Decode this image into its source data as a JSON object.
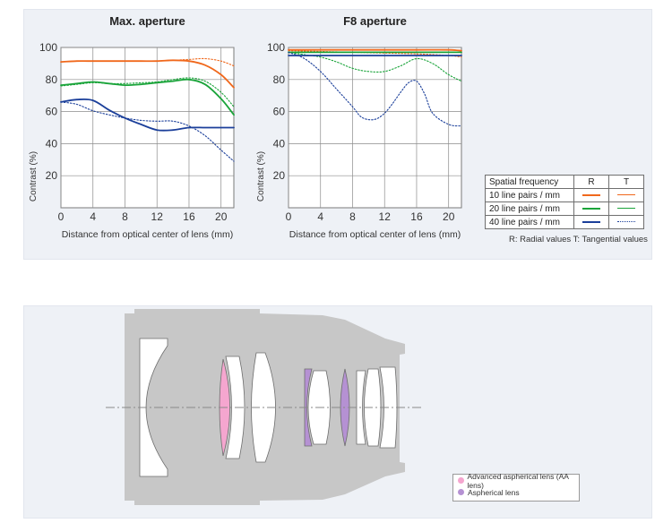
{
  "chart_data": [
    {
      "type": "line",
      "title": "Max. aperture",
      "xlabel": "Distance from optical center of lens (mm)",
      "ylabel": "Contrast (%)",
      "xlim": [
        0,
        21.6
      ],
      "ylim": [
        0,
        100
      ],
      "xticks": [
        0,
        4,
        8,
        12,
        16,
        20
      ],
      "yticks": [
        20,
        40,
        60,
        80,
        100
      ],
      "series": [
        {
          "name": "10 line pairs / mm R",
          "color": "#f0681c",
          "dashed": false,
          "x": [
            0,
            2,
            4,
            6,
            8,
            10,
            12,
            14,
            16,
            18,
            20,
            21.6
          ],
          "y": [
            91,
            91.5,
            91.5,
            91.5,
            91.5,
            91.5,
            91.5,
            92,
            91.5,
            89,
            83,
            75
          ]
        },
        {
          "name": "10 line pairs / mm T",
          "color": "#f0681c",
          "dashed": true,
          "x": [
            0,
            2,
            4,
            6,
            8,
            10,
            12,
            14,
            16,
            18,
            20,
            21.6
          ],
          "y": [
            91,
            91.5,
            91.5,
            91.5,
            91.5,
            91.5,
            91.5,
            92,
            92.5,
            93,
            91.5,
            88.5
          ]
        },
        {
          "name": "20 line pairs / mm R",
          "color": "#1aa43a",
          "dashed": false,
          "x": [
            0,
            2,
            4,
            6,
            8,
            10,
            12,
            14,
            16,
            18,
            20,
            21.6
          ],
          "y": [
            76.5,
            77.5,
            78.5,
            77.5,
            76.5,
            77,
            78,
            79,
            80,
            77,
            68,
            58
          ]
        },
        {
          "name": "20 line pairs / mm T",
          "color": "#1aa43a",
          "dashed": true,
          "x": [
            0,
            2,
            4,
            6,
            8,
            10,
            12,
            14,
            16,
            18,
            20,
            21.6
          ],
          "y": [
            76,
            77,
            78,
            77.5,
            77.5,
            78,
            78.5,
            80,
            81,
            79,
            72,
            63
          ]
        },
        {
          "name": "40 line pairs / mm R",
          "color": "#1b3f9a",
          "dashed": false,
          "x": [
            0,
            2,
            4,
            6,
            8,
            10,
            12,
            14,
            16,
            18,
            20,
            21.6
          ],
          "y": [
            66,
            67.5,
            67,
            61,
            56,
            52,
            48.5,
            48.5,
            50,
            50,
            50,
            50
          ]
        },
        {
          "name": "40 line pairs / mm T",
          "color": "#1b3f9a",
          "dashed": true,
          "x": [
            0,
            2,
            4,
            6,
            8,
            10,
            12,
            14,
            16,
            18,
            20,
            21.6
          ],
          "y": [
            66,
            64.5,
            60.5,
            58,
            56,
            54.5,
            54,
            54,
            51,
            45,
            36,
            29
          ]
        }
      ]
    },
    {
      "type": "line",
      "title": "F8 aperture",
      "xlabel": "Distance from optical center of lens (mm)",
      "ylabel": "Contrast (%)",
      "xlim": [
        0,
        21.6
      ],
      "ylim": [
        0,
        100
      ],
      "xticks": [
        0,
        4,
        8,
        12,
        16,
        20
      ],
      "yticks": [
        20,
        40,
        60,
        80,
        100
      ],
      "series": [
        {
          "name": "10 line pairs / mm R",
          "color": "#f0681c",
          "dashed": false,
          "x": [
            0,
            4,
            8,
            12,
            16,
            20,
            21.6
          ],
          "y": [
            98.5,
            98.5,
            98.5,
            98.5,
            98.5,
            98.5,
            98
          ]
        },
        {
          "name": "10 line pairs / mm T",
          "color": "#f0681c",
          "dashed": true,
          "x": [
            0,
            4,
            8,
            12,
            16,
            20,
            21.6
          ],
          "y": [
            98,
            97.5,
            97,
            96.5,
            96,
            95,
            94
          ]
        },
        {
          "name": "20 line pairs / mm R",
          "color": "#1aa43a",
          "dashed": false,
          "x": [
            0,
            4,
            8,
            12,
            16,
            20,
            21.6
          ],
          "y": [
            97,
            97,
            97,
            97,
            97,
            97,
            97
          ]
        },
        {
          "name": "20 line pairs / mm T",
          "color": "#1aa43a",
          "dashed": true,
          "x": [
            0,
            2,
            4,
            6,
            8,
            10,
            12,
            14,
            16,
            18,
            20,
            21.6
          ],
          "y": [
            97,
            95.5,
            94,
            91,
            87,
            85,
            85,
            88.5,
            93,
            90,
            83,
            79
          ]
        },
        {
          "name": "40 line pairs / mm R",
          "color": "#1b3f9a",
          "dashed": false,
          "x": [
            0,
            4,
            8,
            12,
            16,
            20,
            21.6
          ],
          "y": [
            95,
            95,
            95,
            95,
            95,
            95,
            95
          ]
        },
        {
          "name": "40 line pairs / mm T",
          "color": "#1b3f9a",
          "dashed": true,
          "x": [
            0,
            2,
            4,
            6,
            8,
            9,
            10,
            11,
            12,
            13,
            14,
            15,
            16,
            17,
            18,
            20,
            21.6
          ],
          "y": [
            97,
            93,
            85,
            74,
            63,
            57,
            55,
            55.5,
            59,
            65,
            72,
            78,
            79,
            71,
            59,
            52,
            51
          ]
        }
      ]
    }
  ],
  "legend": {
    "header": "Spatial frequency",
    "col_r": "R",
    "col_t": "T",
    "rows": [
      {
        "label": "10 line pairs / mm",
        "color": "#f0681c"
      },
      {
        "label": "20 line pairs / mm",
        "color": "#1aa43a"
      },
      {
        "label": "40 line pairs / mm",
        "color": "#1b3f9a"
      }
    ],
    "note": "R: Radial values  T: Tangential values"
  },
  "lens_diagram": {
    "legend": [
      {
        "label": "Advanced aspherical lens (AA lens)",
        "color": "#f5a6cf"
      },
      {
        "label": "Aspherical lens",
        "color": "#b591d3"
      }
    ],
    "colors": {
      "body": "#c7c7c7",
      "element": "#ffffff",
      "aa": "#f5a6cf",
      "aspherical": "#b591d3"
    }
  }
}
